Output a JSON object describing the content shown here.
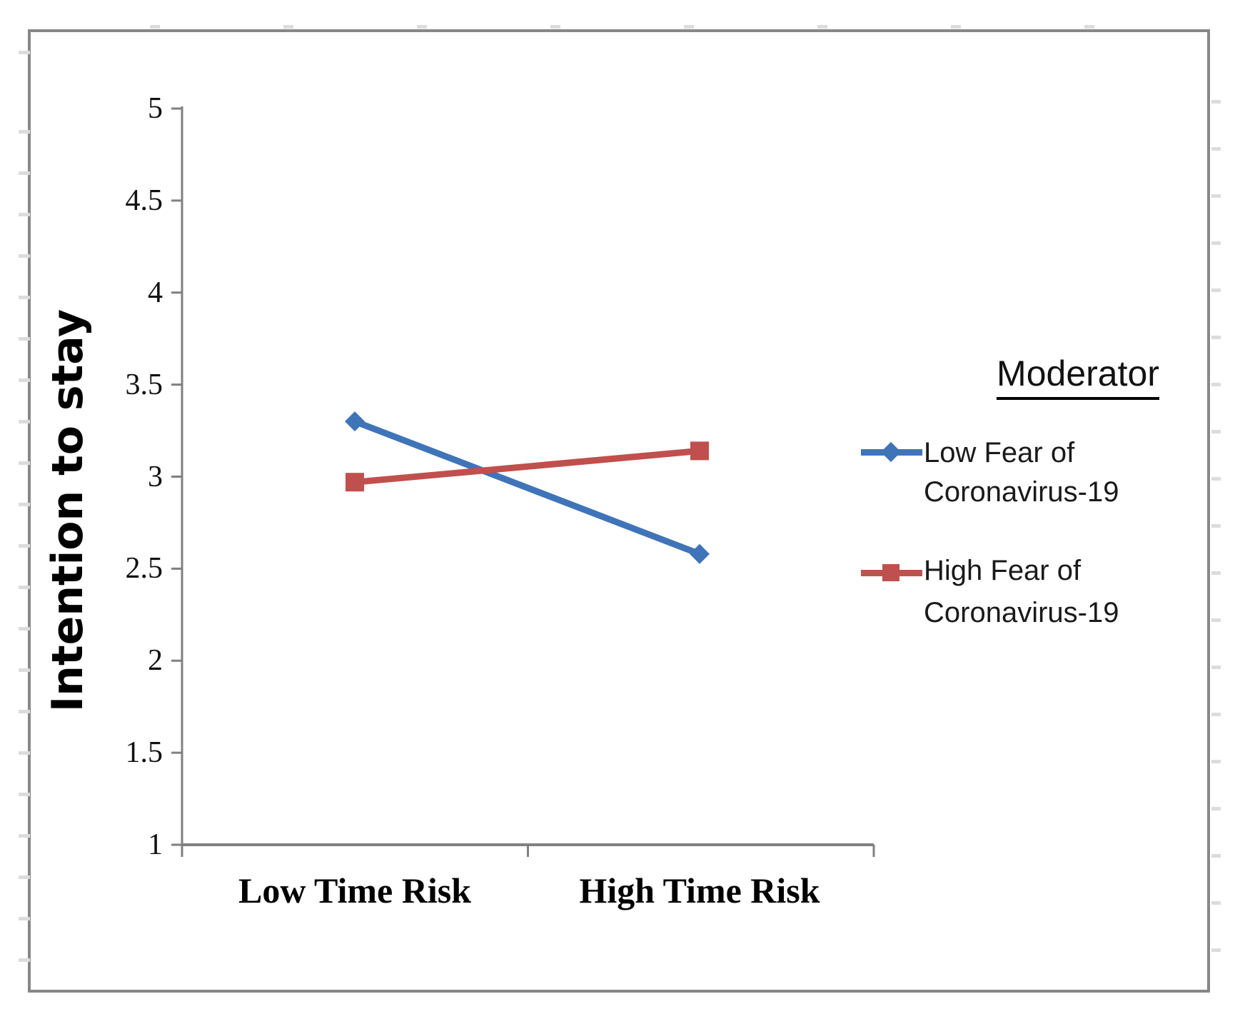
{
  "figure": {
    "y_axis_title": "Intention to stay",
    "legend": {
      "title": "Moderator",
      "items": [
        {
          "name": "Low Fear of Coronavirus-19",
          "lines": [
            "Low Fear of",
            "Coronavirus-19"
          ],
          "color": "#4074B8",
          "marker": "diamond"
        },
        {
          "name": "High Fear of Coronavirus-19",
          "lines": [
            "High Fear of",
            "Coronavirus-19"
          ],
          "color": "#C0504D",
          "marker": "square"
        }
      ]
    }
  },
  "chart_data": {
    "type": "line",
    "categories": [
      "Low Time Risk",
      "High Time Risk"
    ],
    "series": [
      {
        "name": "Low Fear of Coronavirus-19",
        "values": [
          3.3,
          2.58
        ],
        "color": "#4074B8",
        "marker": "diamond"
      },
      {
        "name": "High Fear of Coronavirus-19",
        "values": [
          2.97,
          3.14
        ],
        "color": "#C0504D",
        "marker": "square"
      }
    ],
    "title": "",
    "xlabel": "",
    "ylabel": "Intention to stay",
    "ylim": [
      1,
      5
    ],
    "yticks": [
      5,
      4.5,
      4,
      3.5,
      3,
      2.5,
      2,
      1.5,
      1
    ],
    "grid": false,
    "legend_position": "right",
    "legend_title": "Moderator",
    "axis_color": "#808080"
  }
}
